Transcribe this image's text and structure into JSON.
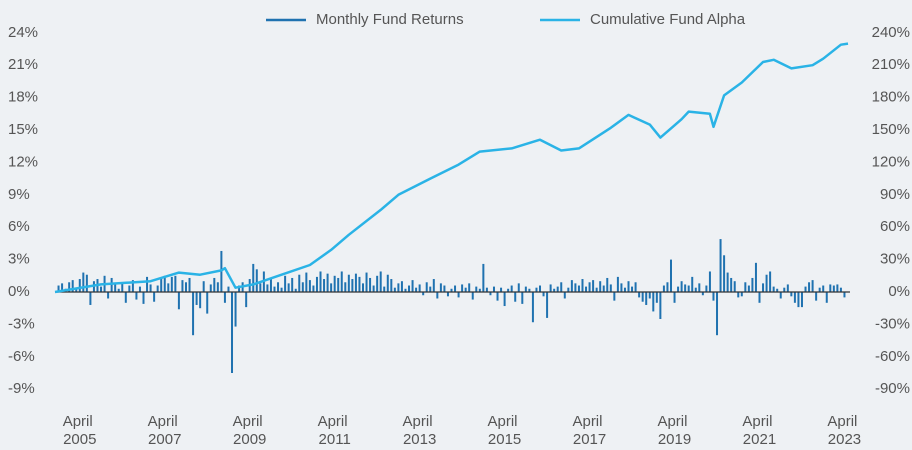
{
  "chart_data": {
    "type": "bar-line",
    "xlim": [
      "2004-09",
      "2023-05"
    ],
    "xticks": [
      {
        "value": "2005-04",
        "label": "April 2005"
      },
      {
        "value": "2007-04",
        "label": "April 2007"
      },
      {
        "value": "2009-04",
        "label": "April 2009"
      },
      {
        "value": "2011-04",
        "label": "April 2011"
      },
      {
        "value": "2013-04",
        "label": "April 2013"
      },
      {
        "value": "2015-04",
        "label": "April 2015"
      },
      {
        "value": "2017-04",
        "label": "April 2017"
      },
      {
        "value": "2019-04",
        "label": "April 2019"
      },
      {
        "value": "2021-04",
        "label": "April 2021"
      },
      {
        "value": "2023-04",
        "label": "April 2023"
      }
    ],
    "ylim": [
      -10,
      25
    ],
    "yticks": [
      {
        "value": -9,
        "label": "-9%"
      },
      {
        "value": -6,
        "label": "-6%"
      },
      {
        "value": -3,
        "label": "-3%"
      },
      {
        "value": 0,
        "label": "0%"
      },
      {
        "value": 3,
        "label": "3%"
      },
      {
        "value": 6,
        "label": "6%"
      },
      {
        "value": 9,
        "label": "9%"
      },
      {
        "value": 12,
        "label": "12%"
      },
      {
        "value": 15,
        "label": "15%"
      },
      {
        "value": 18,
        "label": "18%"
      },
      {
        "value": 21,
        "label": "21%"
      },
      {
        "value": 24,
        "label": "24%"
      }
    ],
    "y2lim": [
      -100,
      250
    ],
    "y2ticks": [
      {
        "value": -90,
        "label": "-90%"
      },
      {
        "value": -60,
        "label": "-60%"
      },
      {
        "value": -30,
        "label": "-30%"
      },
      {
        "value": 0,
        "label": "0%"
      },
      {
        "value": 30,
        "label": "30%"
      },
      {
        "value": 60,
        "label": "60%"
      },
      {
        "value": 90,
        "label": "90%"
      },
      {
        "value": 120,
        "label": "120%"
      },
      {
        "value": 150,
        "label": "150%"
      },
      {
        "value": 180,
        "label": "180%"
      },
      {
        "value": 210,
        "label": "210%"
      },
      {
        "value": 240,
        "label": "240%"
      }
    ],
    "grid": false,
    "series": [
      {
        "name": "Monthly Fund Returns",
        "type": "bar",
        "color": "#1f72b0",
        "x": [
          "2004-10",
          "2004-11",
          "2004-12",
          "2005-01",
          "2005-02",
          "2005-03",
          "2005-04",
          "2005-05",
          "2005-06",
          "2005-07",
          "2005-08",
          "2005-09",
          "2005-10",
          "2005-11",
          "2005-12",
          "2006-01",
          "2006-02",
          "2006-03",
          "2006-04",
          "2006-05",
          "2006-06",
          "2006-07",
          "2006-08",
          "2006-09",
          "2006-10",
          "2006-11",
          "2006-12",
          "2007-01",
          "2007-02",
          "2007-03",
          "2007-04",
          "2007-05",
          "2007-06",
          "2007-07",
          "2007-08",
          "2007-09",
          "2007-10",
          "2007-11",
          "2007-12",
          "2008-01",
          "2008-02",
          "2008-03",
          "2008-04",
          "2008-05",
          "2008-06",
          "2008-07",
          "2008-08",
          "2008-09",
          "2008-10",
          "2008-11",
          "2008-12",
          "2009-01",
          "2009-02",
          "2009-03",
          "2009-04",
          "2009-05",
          "2009-06",
          "2009-07",
          "2009-08",
          "2009-09",
          "2009-10",
          "2009-11",
          "2009-12",
          "2010-01",
          "2010-02",
          "2010-03",
          "2010-04",
          "2010-05",
          "2010-06",
          "2010-07",
          "2010-08",
          "2010-09",
          "2010-10",
          "2010-11",
          "2010-12",
          "2011-01",
          "2011-02",
          "2011-03",
          "2011-04",
          "2011-05",
          "2011-06",
          "2011-07",
          "2011-08",
          "2011-09",
          "2011-10",
          "2011-11",
          "2011-12",
          "2012-01",
          "2012-02",
          "2012-03",
          "2012-04",
          "2012-05",
          "2012-06",
          "2012-07",
          "2012-08",
          "2012-09",
          "2012-10",
          "2012-11",
          "2012-12",
          "2013-01",
          "2013-02",
          "2013-03",
          "2013-04",
          "2013-05",
          "2013-06",
          "2013-07",
          "2013-08",
          "2013-09",
          "2013-10",
          "2013-11",
          "2013-12",
          "2014-01",
          "2014-02",
          "2014-03",
          "2014-04",
          "2014-05",
          "2014-06",
          "2014-07",
          "2014-08",
          "2014-09",
          "2014-10",
          "2014-11",
          "2014-12",
          "2015-01",
          "2015-02",
          "2015-03",
          "2015-04",
          "2015-05",
          "2015-06",
          "2015-07",
          "2015-08",
          "2015-09",
          "2015-10",
          "2015-11",
          "2015-12",
          "2016-01",
          "2016-02",
          "2016-03",
          "2016-04",
          "2016-05",
          "2016-06",
          "2016-07",
          "2016-08",
          "2016-09",
          "2016-10",
          "2016-11",
          "2016-12",
          "2017-01",
          "2017-02",
          "2017-03",
          "2017-04",
          "2017-05",
          "2017-06",
          "2017-07",
          "2017-08",
          "2017-09",
          "2017-10",
          "2017-11",
          "2017-12",
          "2018-01",
          "2018-02",
          "2018-03",
          "2018-04",
          "2018-05",
          "2018-06",
          "2018-07",
          "2018-08",
          "2018-09",
          "2018-10",
          "2018-11",
          "2018-12",
          "2019-01",
          "2019-02",
          "2019-03",
          "2019-04",
          "2019-05",
          "2019-06",
          "2019-07",
          "2019-08",
          "2019-09",
          "2019-10",
          "2019-11",
          "2019-12",
          "2020-01",
          "2020-02",
          "2020-03",
          "2020-04",
          "2020-05",
          "2020-06",
          "2020-07",
          "2020-08",
          "2020-09",
          "2020-10",
          "2020-11",
          "2020-12",
          "2021-01",
          "2021-02",
          "2021-03",
          "2021-04",
          "2021-05",
          "2021-06",
          "2021-07",
          "2021-08",
          "2021-09",
          "2021-10",
          "2021-11",
          "2021-12",
          "2022-01",
          "2022-02",
          "2022-03",
          "2022-04",
          "2022-05",
          "2022-06",
          "2022-07",
          "2022-08",
          "2022-09",
          "2022-10",
          "2022-11",
          "2022-12",
          "2023-01",
          "2023-02",
          "2023-03",
          "2023-04"
        ],
        "values": [
          0.6,
          0.8,
          0.3,
          0.9,
          1.1,
          0.4,
          1.2,
          1.8,
          1.6,
          -1.2,
          1.0,
          1.2,
          0.5,
          1.5,
          -0.6,
          1.3,
          0.8,
          0.3,
          0.9,
          -1.0,
          0.6,
          1.1,
          -0.7,
          0.5,
          -1.1,
          1.4,
          0.7,
          -0.9,
          0.6,
          1.2,
          1.5,
          0.8,
          1.4,
          1.5,
          -1.6,
          1.1,
          0.9,
          1.3,
          -4.0,
          -1.2,
          -1.5,
          1.0,
          -2.0,
          0.7,
          1.3,
          0.9,
          3.8,
          -1.0,
          0.5,
          -7.5,
          -3.2,
          0.6,
          0.9,
          -1.4,
          1.2,
          2.6,
          2.1,
          0.8,
          1.9,
          0.7,
          1.2,
          0.5,
          0.9,
          0.4,
          1.5,
          0.8,
          1.3,
          0.3,
          1.6,
          0.9,
          1.8,
          1.1,
          0.6,
          1.4,
          1.9,
          1.2,
          1.7,
          0.8,
          1.5,
          1.3,
          1.9,
          0.9,
          1.6,
          1.2,
          1.7,
          1.4,
          0.8,
          1.8,
          1.3,
          0.6,
          1.5,
          1.9,
          0.5,
          1.6,
          1.2,
          0.4,
          0.8,
          1.0,
          0.3,
          0.6,
          1.1,
          0.4,
          0.7,
          -0.3,
          0.9,
          0.5,
          1.2,
          -0.6,
          0.8,
          0.6,
          -0.4,
          0.3,
          0.6,
          -0.5,
          0.7,
          0.4,
          0.8,
          -0.7,
          0.5,
          0.3,
          2.6,
          0.4,
          -0.3,
          0.5,
          -0.8,
          0.4,
          -1.3,
          0.3,
          0.6,
          -0.9,
          0.8,
          -1.1,
          0.5,
          0.3,
          -2.8,
          0.4,
          0.6,
          -0.4,
          -2.4,
          0.7,
          0.3,
          0.5,
          0.9,
          -0.6,
          0.4,
          1.1,
          0.8,
          0.6,
          1.2,
          0.5,
          0.9,
          1.1,
          0.4,
          1.0,
          0.6,
          1.3,
          0.7,
          -0.8,
          1.4,
          0.8,
          0.4,
          1.0,
          0.5,
          0.9,
          -0.5,
          -0.9,
          -1.2,
          -0.6,
          -1.8,
          -1.0,
          -2.5,
          0.6,
          0.9,
          3.0,
          -1.0,
          0.5,
          1.0,
          0.7,
          0.6,
          1.4,
          0.4,
          0.8,
          -0.3,
          0.6,
          1.9,
          -0.8,
          -4.0,
          4.9,
          3.4,
          1.8,
          1.3,
          1.0,
          -0.5,
          -0.4,
          0.9,
          0.6,
          1.3,
          2.7,
          -1.0,
          0.8,
          1.6,
          1.9,
          0.5,
          0.3,
          -0.6,
          0.4,
          0.7,
          -0.4,
          -1.0,
          -1.4,
          -1.4,
          0.5,
          0.9,
          1.1,
          -0.8,
          0.4,
          0.6,
          -1.0,
          0.7,
          0.6,
          0.7,
          0.4,
          -0.5
        ]
      },
      {
        "name": "Cumulative Fund Alpha",
        "type": "line",
        "axis": "y2",
        "color": "#2ab3e6",
        "x": [
          "2004-09",
          "2005-10",
          "2006-12",
          "2007-08",
          "2008-02",
          "2008-08",
          "2008-09",
          "2008-12",
          "2009-05",
          "2010-01",
          "2010-09",
          "2011-03",
          "2011-08",
          "2012-05",
          "2012-10",
          "2013-07",
          "2014-03",
          "2014-09",
          "2015-06",
          "2016-02",
          "2016-08",
          "2017-01",
          "2017-10",
          "2018-03",
          "2018-09",
          "2018-12",
          "2019-06",
          "2019-08",
          "2020-02",
          "2020-03",
          "2020-06",
          "2020-11",
          "2021-05",
          "2021-08",
          "2022-01",
          "2022-07",
          "2022-10",
          "2023-03",
          "2023-05"
        ],
        "values": [
          0,
          7,
          10,
          18,
          16,
          20,
          22,
          4,
          7,
          16,
          25,
          39,
          53,
          76,
          90,
          105,
          118,
          130,
          133,
          141,
          131,
          133,
          152,
          164,
          155,
          143,
          160,
          167,
          165,
          153,
          182,
          194,
          213,
          215,
          207,
          210,
          216,
          229,
          230
        ]
      }
    ]
  }
}
